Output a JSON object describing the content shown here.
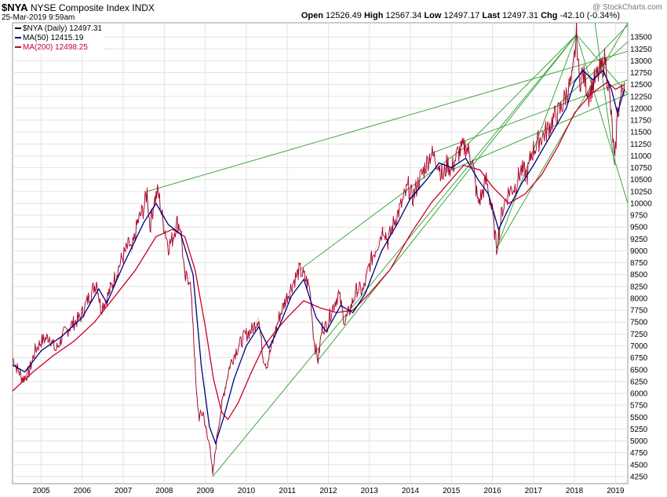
{
  "header": {
    "symbol": "$NYA",
    "name": "NYSE Composite Index",
    "exchange": "INDX",
    "date": "25-Mar-2019 9:59am",
    "watermark": "@ StockCharts.com",
    "open_label": "Open",
    "open": "12526.49",
    "high_label": "High",
    "high": "12567.34",
    "low_label": "Low",
    "low": "12497.17",
    "last_label": "Last",
    "last": "12497.31",
    "chg_label": "Chg",
    "chg": "-42.10 (-0.34%)"
  },
  "legend": [
    {
      "label": "$NYA (Daily) 12497.31",
      "color": "#000000"
    },
    {
      "label": "MA(50) 12415.19",
      "color": "#000080"
    },
    {
      "label": "MA(200) 12498.25",
      "color": "#c00030"
    }
  ],
  "colors": {
    "price": "#b0002a",
    "price_dark": "#1a1a1a",
    "ma50": "#00007a",
    "ma200": "#c8002a",
    "trend": "#2e9e2e",
    "grid": "#e3e3e3"
  },
  "chart_data": {
    "type": "line",
    "title": "$NYA NYSE Composite Index INDX",
    "xlabel": "",
    "ylabel": "",
    "xlim": [
      2004.3,
      2019.3
    ],
    "ylim": [
      4100,
      13800
    ],
    "y_ticks": [
      4250,
      4500,
      4750,
      5000,
      5250,
      5500,
      5750,
      6000,
      6250,
      6500,
      6750,
      7000,
      7250,
      7500,
      7750,
      8000,
      8250,
      8500,
      8750,
      9000,
      9250,
      9500,
      9750,
      10000,
      10250,
      10500,
      10750,
      11000,
      11250,
      11500,
      11750,
      12000,
      12250,
      12500,
      12750,
      13000,
      13250,
      13500
    ],
    "x_ticks": [
      {
        "v": 2005,
        "label": "2005"
      },
      {
        "v": 2006,
        "label": "2006"
      },
      {
        "v": 2007,
        "label": "2007"
      },
      {
        "v": 2008,
        "label": "2008"
      },
      {
        "v": 2009,
        "label": "2009"
      },
      {
        "v": 2010,
        "label": "2010"
      },
      {
        "v": 2011,
        "label": "2011"
      },
      {
        "v": 2012,
        "label": "2012"
      },
      {
        "v": 2013,
        "label": "2013"
      },
      {
        "v": 2014,
        "label": "2014"
      },
      {
        "v": 2015,
        "label": "2015"
      },
      {
        "v": 2016,
        "label": "2016"
      },
      {
        "v": 2017,
        "label": "2017"
      },
      {
        "v": 2018,
        "label": "2018"
      },
      {
        "v": 2019,
        "label": "2019"
      }
    ],
    "series": [
      {
        "name": "$NYA (Daily)",
        "points": [
          [
            2004.3,
            6750
          ],
          [
            2004.4,
            6550
          ],
          [
            2004.55,
            6300
          ],
          [
            2004.7,
            6450
          ],
          [
            2004.85,
            6900
          ],
          [
            2005.0,
            7100
          ],
          [
            2005.2,
            7200
          ],
          [
            2005.35,
            6900
          ],
          [
            2005.55,
            7250
          ],
          [
            2005.75,
            7450
          ],
          [
            2005.95,
            7600
          ],
          [
            2006.15,
            8000
          ],
          [
            2006.35,
            8350
          ],
          [
            2006.45,
            7800
          ],
          [
            2006.6,
            8000
          ],
          [
            2006.8,
            8450
          ],
          [
            2006.95,
            8800
          ],
          [
            2007.15,
            9150
          ],
          [
            2007.2,
            8950
          ],
          [
            2007.35,
            9600
          ],
          [
            2007.5,
            9900
          ],
          [
            2007.58,
            10250
          ],
          [
            2007.65,
            9500
          ],
          [
            2007.75,
            10050
          ],
          [
            2007.85,
            10250
          ],
          [
            2007.95,
            9700
          ],
          [
            2008.1,
            9100
          ],
          [
            2008.2,
            9250
          ],
          [
            2008.3,
            9600
          ],
          [
            2008.4,
            9500
          ],
          [
            2008.5,
            8400
          ],
          [
            2008.62,
            8450
          ],
          [
            2008.7,
            7500
          ],
          [
            2008.78,
            6000
          ],
          [
            2008.85,
            5500
          ],
          [
            2008.95,
            5600
          ],
          [
            2009.05,
            5050
          ],
          [
            2009.12,
            4900
          ],
          [
            2009.18,
            4250
          ],
          [
            2009.3,
            5200
          ],
          [
            2009.45,
            6000
          ],
          [
            2009.6,
            6600
          ],
          [
            2009.75,
            6900
          ],
          [
            2009.95,
            7200
          ],
          [
            2010.15,
            7350
          ],
          [
            2010.3,
            7600
          ],
          [
            2010.4,
            6800
          ],
          [
            2010.5,
            6600
          ],
          [
            2010.65,
            7100
          ],
          [
            2010.8,
            7600
          ],
          [
            2010.95,
            7950
          ],
          [
            2011.15,
            8350
          ],
          [
            2011.3,
            8600
          ],
          [
            2011.45,
            8400
          ],
          [
            2011.55,
            8200
          ],
          [
            2011.65,
            7100
          ],
          [
            2011.75,
            6700
          ],
          [
            2011.85,
            7400
          ],
          [
            2011.95,
            7400
          ],
          [
            2012.1,
            7800
          ],
          [
            2012.25,
            8100
          ],
          [
            2012.4,
            7500
          ],
          [
            2012.5,
            7700
          ],
          [
            2012.7,
            8200
          ],
          [
            2012.85,
            8150
          ],
          [
            2013.0,
            8700
          ],
          [
            2013.2,
            9150
          ],
          [
            2013.35,
            9500
          ],
          [
            2013.45,
            9200
          ],
          [
            2013.6,
            9600
          ],
          [
            2013.75,
            9900
          ],
          [
            2013.95,
            10350
          ],
          [
            2014.05,
            10100
          ],
          [
            2014.2,
            10450
          ],
          [
            2014.35,
            10750
          ],
          [
            2014.5,
            11050
          ],
          [
            2014.65,
            10900
          ],
          [
            2014.8,
            10550
          ],
          [
            2014.9,
            10850
          ],
          [
            2015.0,
            10700
          ],
          [
            2015.15,
            11050
          ],
          [
            2015.35,
            11200
          ],
          [
            2015.5,
            10950
          ],
          [
            2015.65,
            10000
          ],
          [
            2015.75,
            10200
          ],
          [
            2015.85,
            10500
          ],
          [
            2016.0,
            9800
          ],
          [
            2016.1,
            9050
          ],
          [
            2016.25,
            9900
          ],
          [
            2016.4,
            10250
          ],
          [
            2016.55,
            10350
          ],
          [
            2016.7,
            10700
          ],
          [
            2016.85,
            10600
          ],
          [
            2016.95,
            11050
          ],
          [
            2017.15,
            11350
          ],
          [
            2017.35,
            11550
          ],
          [
            2017.5,
            11800
          ],
          [
            2017.65,
            11950
          ],
          [
            2017.8,
            12300
          ],
          [
            2017.95,
            12600
          ],
          [
            2018.05,
            13550
          ],
          [
            2018.12,
            12550
          ],
          [
            2018.2,
            12750
          ],
          [
            2018.35,
            12300
          ],
          [
            2018.5,
            12600
          ],
          [
            2018.65,
            12800
          ],
          [
            2018.75,
            13050
          ],
          [
            2018.85,
            12300
          ],
          [
            2018.92,
            11600
          ],
          [
            2018.98,
            10800
          ],
          [
            2019.05,
            11900
          ],
          [
            2019.15,
            12300
          ],
          [
            2019.22,
            12550
          ]
        ]
      },
      {
        "name": "MA(50)",
        "points": [
          [
            2004.3,
            6600
          ],
          [
            2004.6,
            6450
          ],
          [
            2005.0,
            6900
          ],
          [
            2005.5,
            7200
          ],
          [
            2006.0,
            7600
          ],
          [
            2006.4,
            8200
          ],
          [
            2006.6,
            7900
          ],
          [
            2007.0,
            8700
          ],
          [
            2007.5,
            9600
          ],
          [
            2007.8,
            10000
          ],
          [
            2008.1,
            9550
          ],
          [
            2008.4,
            9350
          ],
          [
            2008.7,
            8500
          ],
          [
            2008.9,
            6600
          ],
          [
            2009.1,
            5300
          ],
          [
            2009.25,
            4950
          ],
          [
            2009.45,
            5500
          ],
          [
            2009.7,
            6300
          ],
          [
            2010.0,
            7000
          ],
          [
            2010.3,
            7400
          ],
          [
            2010.55,
            6950
          ],
          [
            2010.8,
            7400
          ],
          [
            2011.1,
            8050
          ],
          [
            2011.4,
            8400
          ],
          [
            2011.7,
            7600
          ],
          [
            2011.95,
            7300
          ],
          [
            2012.3,
            7850
          ],
          [
            2012.6,
            7700
          ],
          [
            2012.9,
            8100
          ],
          [
            2013.3,
            9000
          ],
          [
            2013.7,
            9600
          ],
          [
            2014.0,
            10100
          ],
          [
            2014.4,
            10500
          ],
          [
            2014.7,
            10850
          ],
          [
            2015.0,
            10750
          ],
          [
            2015.35,
            10950
          ],
          [
            2015.65,
            10500
          ],
          [
            2015.9,
            10200
          ],
          [
            2016.15,
            9450
          ],
          [
            2016.4,
            9900
          ],
          [
            2016.7,
            10400
          ],
          [
            2017.0,
            10800
          ],
          [
            2017.4,
            11400
          ],
          [
            2017.8,
            12000
          ],
          [
            2018.0,
            12550
          ],
          [
            2018.2,
            12800
          ],
          [
            2018.45,
            12600
          ],
          [
            2018.7,
            12800
          ],
          [
            2018.9,
            12400
          ],
          [
            2019.05,
            11900
          ],
          [
            2019.22,
            12400
          ]
        ]
      },
      {
        "name": "MA(200)",
        "points": [
          [
            2004.3,
            6050
          ],
          [
            2004.8,
            6450
          ],
          [
            2005.3,
            6800
          ],
          [
            2005.8,
            7100
          ],
          [
            2006.3,
            7500
          ],
          [
            2006.8,
            8050
          ],
          [
            2007.3,
            8600
          ],
          [
            2007.8,
            9300
          ],
          [
            2008.2,
            9450
          ],
          [
            2008.5,
            9300
          ],
          [
            2008.75,
            8600
          ],
          [
            2009.0,
            7400
          ],
          [
            2009.2,
            6300
          ],
          [
            2009.4,
            5600
          ],
          [
            2009.55,
            5450
          ],
          [
            2009.8,
            5800
          ],
          [
            2010.1,
            6400
          ],
          [
            2010.4,
            6950
          ],
          [
            2010.7,
            7300
          ],
          [
            2011.0,
            7600
          ],
          [
            2011.4,
            7950
          ],
          [
            2011.8,
            7800
          ],
          [
            2012.2,
            7700
          ],
          [
            2012.6,
            7750
          ],
          [
            2013.0,
            8100
          ],
          [
            2013.5,
            8600
          ],
          [
            2014.0,
            9350
          ],
          [
            2014.5,
            10000
          ],
          [
            2014.9,
            10400
          ],
          [
            2015.3,
            10800
          ],
          [
            2015.7,
            10700
          ],
          [
            2016.0,
            10350
          ],
          [
            2016.4,
            10000
          ],
          [
            2016.8,
            10200
          ],
          [
            2017.2,
            10600
          ],
          [
            2017.6,
            11200
          ],
          [
            2018.0,
            11900
          ],
          [
            2018.4,
            12300
          ],
          [
            2018.8,
            12550
          ],
          [
            2019.0,
            12400
          ],
          [
            2019.22,
            12500
          ]
        ]
      }
    ],
    "trendlines": [
      {
        "from": [
          2009.18,
          4250
        ],
        "to": [
          2018.05,
          13550
        ]
      },
      {
        "from": [
          2011.75,
          6700
        ],
        "to": [
          2018.05,
          13550
        ]
      },
      {
        "from": [
          2016.1,
          9050
        ],
        "to": [
          2018.05,
          13550
        ]
      },
      {
        "from": [
          2016.1,
          9050
        ],
        "to": [
          2019.3,
          13800
        ]
      },
      {
        "from": [
          2007.58,
          10250
        ],
        "to": [
          2019.3,
          13200
        ]
      },
      {
        "from": [
          2011.3,
          8600
        ],
        "to": [
          2015.35,
          11200
        ]
      },
      {
        "from": [
          2015.35,
          11200
        ],
        "to": [
          2018.05,
          13550
        ]
      },
      {
        "from": [
          2014.5,
          11050
        ],
        "to": [
          2019.3,
          12600
        ]
      },
      {
        "from": [
          2015.0,
          10700
        ],
        "to": [
          2019.3,
          12300
        ]
      },
      {
        "from": [
          2018.05,
          13550
        ],
        "to": [
          2019.3,
          10000
        ]
      },
      {
        "from": [
          2018.05,
          13550
        ],
        "to": [
          2019.3,
          12300
        ]
      },
      {
        "from": [
          2018.5,
          13800
        ],
        "to": [
          2018.98,
          10800
        ]
      },
      {
        "from": [
          2017.9,
          12500
        ],
        "to": [
          2019.3,
          13750
        ]
      },
      {
        "from": [
          2017.5,
          12000
        ],
        "to": [
          2019.3,
          13400
        ]
      }
    ]
  }
}
